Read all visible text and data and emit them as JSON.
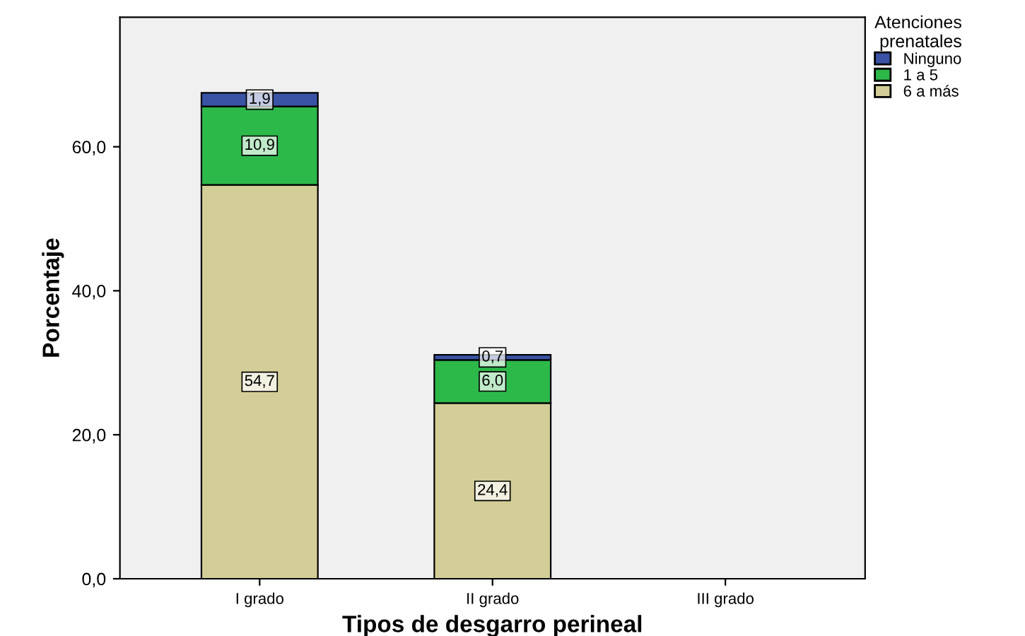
{
  "chart_data": {
    "type": "bar",
    "stacked": true,
    "xlabel": "Tipos de desgarro perineal",
    "ylabel": "Porcentaje",
    "legend_title": "Atenciones\nprenatales",
    "legend": "top right",
    "grid": false,
    "categories": [
      "I grado",
      "II grado",
      "III grado"
    ],
    "series": [
      {
        "name": "6 a más",
        "color": "#d3ce97",
        "values": [
          54.7,
          24.4,
          null
        ],
        "value_labels": [
          "54,7",
          "24,4",
          null
        ]
      },
      {
        "name": "1 a 5",
        "color": "#2db84a",
        "values": [
          10.9,
          6.0,
          null
        ],
        "value_labels": [
          "10,9",
          "6,0",
          null
        ]
      },
      {
        "name": "Ninguno",
        "color": "#3a53a4",
        "values": [
          1.9,
          0.7,
          null
        ],
        "value_labels": [
          "1,9",
          "0,7",
          null
        ]
      }
    ],
    "ylim": [
      0,
      78
    ],
    "yticks": [
      {
        "value": 0,
        "label": "0,0"
      },
      {
        "value": 20,
        "label": "20,0"
      },
      {
        "value": 40,
        "label": "40,0"
      },
      {
        "value": 60,
        "label": "60,0"
      }
    ]
  }
}
